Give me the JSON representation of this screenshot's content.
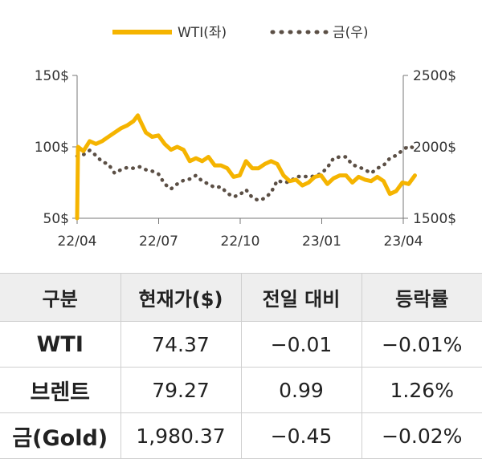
{
  "chart_data": {
    "type": "line",
    "legend_position": "top-center",
    "x_ticks": [
      "22/04",
      "22/07",
      "22/10",
      "23/01",
      "23/04"
    ],
    "y_left": {
      "ticks": [
        "150$",
        "100$",
        "50$"
      ],
      "range": [
        50,
        150
      ]
    },
    "y_right": {
      "ticks": [
        "2500$",
        "2000$",
        "1500$"
      ],
      "range": [
        1500,
        2500
      ]
    },
    "colors": {
      "wti": "#F5B400",
      "gold": "#5B4F45"
    },
    "series": [
      {
        "name": "WTI(좌)",
        "axis": "left",
        "style": "solid",
        "x": [
          "2022-04-01",
          "2022-04-02",
          "2022-04-08",
          "2022-04-15",
          "2022-04-22",
          "2022-04-29",
          "2022-05-06",
          "2022-05-13",
          "2022-05-20",
          "2022-05-27",
          "2022-06-03",
          "2022-06-08",
          "2022-06-10",
          "2022-06-17",
          "2022-06-24",
          "2022-07-01",
          "2022-07-08",
          "2022-07-15",
          "2022-07-22",
          "2022-07-29",
          "2022-08-05",
          "2022-08-12",
          "2022-08-19",
          "2022-08-26",
          "2022-09-02",
          "2022-09-09",
          "2022-09-16",
          "2022-09-23",
          "2022-09-30",
          "2022-10-07",
          "2022-10-14",
          "2022-10-21",
          "2022-10-28",
          "2022-11-04",
          "2022-11-11",
          "2022-11-18",
          "2022-11-25",
          "2022-12-02",
          "2022-12-09",
          "2022-12-16",
          "2022-12-23",
          "2022-12-30",
          "2023-01-06",
          "2023-01-13",
          "2023-01-20",
          "2023-01-27",
          "2023-02-03",
          "2023-02-10",
          "2023-02-17",
          "2023-02-24",
          "2023-03-03",
          "2023-03-10",
          "2023-03-17",
          "2023-03-24",
          "2023-03-31",
          "2023-04-07",
          "2023-04-14"
        ],
        "values": [
          50,
          100,
          97,
          104,
          102,
          104,
          107,
          110,
          113,
          115,
          118,
          122,
          119,
          110,
          107,
          108,
          102,
          98,
          100,
          98,
          90,
          92,
          90,
          93,
          87,
          87,
          85,
          79,
          80,
          90,
          85,
          85,
          88,
          90,
          88,
          80,
          76,
          77,
          73,
          75,
          79,
          80,
          74,
          78,
          80,
          80,
          75,
          79,
          77,
          76,
          79,
          76,
          67,
          69,
          75,
          74,
          80
        ]
      },
      {
        "name": "금(우)",
        "axis": "right",
        "style": "dotted",
        "x": [
          "2022-04-01",
          "2022-04-08",
          "2022-04-15",
          "2022-04-22",
          "2022-04-29",
          "2022-05-06",
          "2022-05-13",
          "2022-05-20",
          "2022-05-27",
          "2022-06-03",
          "2022-06-10",
          "2022-06-17",
          "2022-06-24",
          "2022-07-01",
          "2022-07-08",
          "2022-07-15",
          "2022-07-22",
          "2022-07-29",
          "2022-08-05",
          "2022-08-12",
          "2022-08-19",
          "2022-08-26",
          "2022-09-02",
          "2022-09-09",
          "2022-09-16",
          "2022-09-23",
          "2022-09-30",
          "2022-10-07",
          "2022-10-14",
          "2022-10-21",
          "2022-10-28",
          "2022-11-04",
          "2022-11-11",
          "2022-11-18",
          "2022-11-25",
          "2022-12-02",
          "2022-12-09",
          "2022-12-16",
          "2022-12-23",
          "2022-12-30",
          "2023-01-06",
          "2023-01-13",
          "2023-01-20",
          "2023-01-27",
          "2023-02-03",
          "2023-02-10",
          "2023-02-17",
          "2023-02-24",
          "2023-03-03",
          "2023-03-10",
          "2023-03-17",
          "2023-03-24",
          "2023-03-31",
          "2023-04-07",
          "2023-04-14"
        ],
        "values": [
          1935,
          1945,
          1975,
          1940,
          1895,
          1880,
          1815,
          1840,
          1855,
          1850,
          1860,
          1840,
          1830,
          1810,
          1740,
          1705,
          1740,
          1765,
          1775,
          1800,
          1760,
          1740,
          1715,
          1720,
          1675,
          1650,
          1665,
          1700,
          1645,
          1625,
          1640,
          1680,
          1765,
          1750,
          1755,
          1790,
          1795,
          1790,
          1795,
          1812,
          1855,
          1920,
          1930,
          1930,
          1875,
          1860,
          1840,
          1815,
          1850,
          1870,
          1920,
          1940,
          1975,
          2005,
          1990
        ]
      }
    ]
  },
  "table": {
    "headers": [
      "구분",
      "현재가($)",
      "전일 대비",
      "등락률"
    ],
    "rows": [
      [
        "WTI",
        "74.37",
        "−0.01",
        "−0.01%"
      ],
      [
        "브렌트",
        "79.27",
        "0.99",
        "1.26%"
      ],
      [
        "금(Gold)",
        "1,980.37",
        "−0.45",
        "−0.02%"
      ]
    ]
  }
}
